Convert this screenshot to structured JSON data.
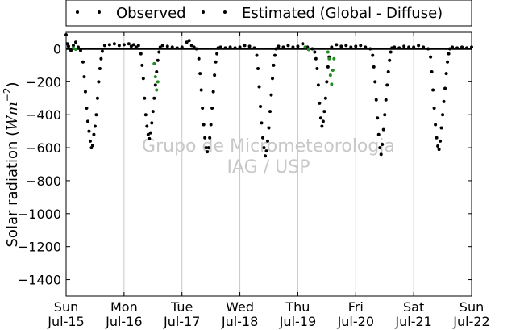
{
  "chart_data": {
    "type": "scatter",
    "title": "",
    "xlabel": "",
    "ylabel": "Solar radiation (Wm⁻²)",
    "ylabel_parts": {
      "prefix": "Solar radiation (",
      "unit_base": "Wm",
      "unit_exponent": "−2",
      "suffix": ")"
    },
    "xlim": [
      "2012-07-15T00:00",
      "2012-07-22T00:00"
    ],
    "ylim": [
      -1500,
      100
    ],
    "yticks": [
      0,
      -200,
      -400,
      -600,
      -800,
      -1000,
      -1200,
      -1400
    ],
    "ytick_labels": [
      "0",
      "−200",
      "−400",
      "−600",
      "−800",
      "−1000",
      "−1200",
      "−1400"
    ],
    "xticks": [
      {
        "date": "2012-07-15",
        "weekday": "Sun",
        "label": "Jul-15"
      },
      {
        "date": "2012-07-16",
        "weekday": "Mon",
        "label": "Jul-16"
      },
      {
        "date": "2012-07-17",
        "weekday": "Tue",
        "label": "Jul-17"
      },
      {
        "date": "2012-07-18",
        "weekday": "Wed",
        "label": "Jul-18"
      },
      {
        "date": "2012-07-19",
        "weekday": "Thu",
        "label": "Jul-19"
      },
      {
        "date": "2012-07-20",
        "weekday": "Fri",
        "label": "Jul-20"
      },
      {
        "date": "2012-07-21",
        "weekday": "Sat",
        "label": "Jul-21"
      },
      {
        "date": "2012-07-22",
        "weekday": "Sun",
        "label": "Jul-22"
      }
    ],
    "grid": {
      "x": true,
      "y": false
    },
    "zero_line": true,
    "legend": {
      "placement": "top",
      "framed": true
    },
    "watermark": [
      "Grupo de Micrometeorologia",
      "IAG / USP"
    ],
    "series": [
      {
        "name": "Observed",
        "color": "#228B22",
        "marker": "dot",
        "points": [
          [
            "2012-07-15T03:00",
            5
          ],
          [
            "2012-07-15T04:00",
            -3
          ],
          [
            "2012-07-16T12:30",
            -90
          ],
          [
            "2012-07-16T13:00",
            -170
          ],
          [
            "2012-07-16T13:30",
            -250
          ],
          [
            "2012-07-16T14:00",
            -200
          ],
          [
            "2012-07-19T03:00",
            10
          ],
          [
            "2012-07-19T04:30",
            -5
          ],
          [
            "2012-07-19T12:30",
            -20
          ],
          [
            "2012-07-19T13:00",
            -60
          ],
          [
            "2012-07-19T13:30",
            -160
          ],
          [
            "2012-07-19T14:00",
            -215
          ],
          [
            "2012-07-19T14:30",
            -130
          ],
          [
            "2012-07-19T15:00",
            -60
          ]
        ]
      },
      {
        "name": "Estimated (Global - Diffuse)",
        "color": "#000000",
        "marker": "dot",
        "points": [
          [
            "2012-07-15T00:00",
            85
          ],
          [
            "2012-07-15T00:30",
            30
          ],
          [
            "2012-07-15T01:00",
            15
          ],
          [
            "2012-07-15T02:00",
            -10
          ],
          [
            "2012-07-15T03:00",
            20
          ],
          [
            "2012-07-15T04:00",
            40
          ],
          [
            "2012-07-15T05:00",
            10
          ],
          [
            "2012-07-15T06:00",
            -10
          ],
          [
            "2012-07-15T07:00",
            -80
          ],
          [
            "2012-07-15T07:30",
            -170
          ],
          [
            "2012-07-15T08:00",
            -260
          ],
          [
            "2012-07-15T08:30",
            -360
          ],
          [
            "2012-07-15T09:00",
            -440
          ],
          [
            "2012-07-15T09:30",
            -500
          ],
          [
            "2012-07-15T10:00",
            -560
          ],
          [
            "2012-07-15T10:30",
            -600
          ],
          [
            "2012-07-15T11:00",
            -585
          ],
          [
            "2012-07-15T11:30",
            -520
          ],
          [
            "2012-07-15T12:00",
            -470
          ],
          [
            "2012-07-15T12:30",
            -400
          ],
          [
            "2012-07-15T13:00",
            -300
          ],
          [
            "2012-07-15T13:30",
            -200
          ],
          [
            "2012-07-15T14:00",
            -120
          ],
          [
            "2012-07-15T14:30",
            -60
          ],
          [
            "2012-07-15T15:00",
            -15
          ],
          [
            "2012-07-15T16:00",
            20
          ],
          [
            "2012-07-15T18:00",
            25
          ],
          [
            "2012-07-15T20:00",
            30
          ],
          [
            "2012-07-15T22:00",
            20
          ],
          [
            "2012-07-16T00:00",
            25
          ],
          [
            "2012-07-16T02:00",
            30
          ],
          [
            "2012-07-16T03:00",
            15
          ],
          [
            "2012-07-16T04:00",
            25
          ],
          [
            "2012-07-16T05:00",
            10
          ],
          [
            "2012-07-16T06:00",
            20
          ],
          [
            "2012-07-16T07:00",
            -30
          ],
          [
            "2012-07-16T07:30",
            -100
          ],
          [
            "2012-07-16T08:00",
            -180
          ],
          [
            "2012-07-16T08:30",
            -300
          ],
          [
            "2012-07-16T09:00",
            -400
          ],
          [
            "2012-07-16T09:30",
            -470
          ],
          [
            "2012-07-16T10:00",
            -520
          ],
          [
            "2012-07-16T10:30",
            -545
          ],
          [
            "2012-07-16T11:00",
            -510
          ],
          [
            "2012-07-16T11:30",
            -450
          ],
          [
            "2012-07-16T12:00",
            -380
          ],
          [
            "2012-07-16T12:30",
            -300
          ],
          [
            "2012-07-16T13:00",
            -220
          ],
          [
            "2012-07-16T13:30",
            -140
          ],
          [
            "2012-07-16T14:00",
            -70
          ],
          [
            "2012-07-16T14:30",
            -20
          ],
          [
            "2012-07-16T15:00",
            10
          ],
          [
            "2012-07-16T16:00",
            20
          ],
          [
            "2012-07-16T18:00",
            15
          ],
          [
            "2012-07-16T20:00",
            10
          ],
          [
            "2012-07-16T22:00",
            5
          ],
          [
            "2012-07-17T00:00",
            10
          ],
          [
            "2012-07-17T02:00",
            40
          ],
          [
            "2012-07-17T03:00",
            50
          ],
          [
            "2012-07-17T04:00",
            20
          ],
          [
            "2012-07-17T05:00",
            10
          ],
          [
            "2012-07-17T06:00",
            0
          ],
          [
            "2012-07-17T07:00",
            -60
          ],
          [
            "2012-07-17T07:30",
            -150
          ],
          [
            "2012-07-17T08:00",
            -250
          ],
          [
            "2012-07-17T08:30",
            -360
          ],
          [
            "2012-07-17T09:00",
            -460
          ],
          [
            "2012-07-17T09:30",
            -540
          ],
          [
            "2012-07-17T10:00",
            -600
          ],
          [
            "2012-07-17T10:30",
            -625
          ],
          [
            "2012-07-17T11:00",
            -600
          ],
          [
            "2012-07-17T11:30",
            -540
          ],
          [
            "2012-07-17T12:00",
            -460
          ],
          [
            "2012-07-17T12:30",
            -360
          ],
          [
            "2012-07-17T13:00",
            -260
          ],
          [
            "2012-07-17T13:30",
            -160
          ],
          [
            "2012-07-17T14:00",
            -80
          ],
          [
            "2012-07-17T14:30",
            -30
          ],
          [
            "2012-07-17T15:00",
            5
          ],
          [
            "2012-07-17T16:00",
            10
          ],
          [
            "2012-07-17T18:00",
            5
          ],
          [
            "2012-07-17T20:00",
            10
          ],
          [
            "2012-07-17T22:00",
            5
          ],
          [
            "2012-07-18T00:00",
            10
          ],
          [
            "2012-07-18T02:00",
            20
          ],
          [
            "2012-07-18T04:00",
            15
          ],
          [
            "2012-07-18T06:00",
            5
          ],
          [
            "2012-07-18T07:00",
            -40
          ],
          [
            "2012-07-18T07:30",
            -120
          ],
          [
            "2012-07-18T08:00",
            -230
          ],
          [
            "2012-07-18T08:30",
            -350
          ],
          [
            "2012-07-18T09:00",
            -450
          ],
          [
            "2012-07-18T09:30",
            -540
          ],
          [
            "2012-07-18T10:00",
            -600
          ],
          [
            "2012-07-18T10:30",
            -650
          ],
          [
            "2012-07-18T11:00",
            -620
          ],
          [
            "2012-07-18T11:30",
            -560
          ],
          [
            "2012-07-18T12:00",
            -480
          ],
          [
            "2012-07-18T12:30",
            -380
          ],
          [
            "2012-07-18T13:00",
            -280
          ],
          [
            "2012-07-18T13:30",
            -180
          ],
          [
            "2012-07-18T14:00",
            -100
          ],
          [
            "2012-07-18T14:30",
            -40
          ],
          [
            "2012-07-18T15:00",
            0
          ],
          [
            "2012-07-18T16:00",
            15
          ],
          [
            "2012-07-18T18:00",
            10
          ],
          [
            "2012-07-18T20:00",
            20
          ],
          [
            "2012-07-18T22:00",
            10
          ],
          [
            "2012-07-19T00:00",
            15
          ],
          [
            "2012-07-19T02:00",
            30
          ],
          [
            "2012-07-19T04:00",
            10
          ],
          [
            "2012-07-19T06:00",
            0
          ],
          [
            "2012-07-19T07:00",
            -20
          ],
          [
            "2012-07-19T07:30",
            -60
          ],
          [
            "2012-07-19T08:00",
            -120
          ],
          [
            "2012-07-19T08:30",
            -220
          ],
          [
            "2012-07-19T09:00",
            -330
          ],
          [
            "2012-07-19T09:30",
            -420
          ],
          [
            "2012-07-19T10:00",
            -470
          ],
          [
            "2012-07-19T10:30",
            -440
          ],
          [
            "2012-07-19T11:00",
            -380
          ],
          [
            "2012-07-19T11:30",
            -300
          ],
          [
            "2012-07-19T12:00",
            -200
          ],
          [
            "2012-07-19T12:30",
            -110
          ],
          [
            "2012-07-19T13:00",
            -50
          ],
          [
            "2012-07-19T14:00",
            10
          ],
          [
            "2012-07-19T16:00",
            25
          ],
          [
            "2012-07-19T18:00",
            15
          ],
          [
            "2012-07-19T20:00",
            20
          ],
          [
            "2012-07-19T22:00",
            10
          ],
          [
            "2012-07-20T00:00",
            15
          ],
          [
            "2012-07-20T02:00",
            20
          ],
          [
            "2012-07-20T04:00",
            10
          ],
          [
            "2012-07-20T06:00",
            0
          ],
          [
            "2012-07-20T07:00",
            -40
          ],
          [
            "2012-07-20T07:30",
            -110
          ],
          [
            "2012-07-20T08:00",
            -200
          ],
          [
            "2012-07-20T08:30",
            -310
          ],
          [
            "2012-07-20T09:00",
            -420
          ],
          [
            "2012-07-20T09:30",
            -520
          ],
          [
            "2012-07-20T10:00",
            -600
          ],
          [
            "2012-07-20T10:30",
            -640
          ],
          [
            "2012-07-20T11:00",
            -580
          ],
          [
            "2012-07-20T11:30",
            -490
          ],
          [
            "2012-07-20T12:00",
            -400
          ],
          [
            "2012-07-20T12:30",
            -310
          ],
          [
            "2012-07-20T13:00",
            -220
          ],
          [
            "2012-07-20T13:30",
            -140
          ],
          [
            "2012-07-20T14:00",
            -70
          ],
          [
            "2012-07-20T14:30",
            -20
          ],
          [
            "2012-07-20T15:00",
            5
          ],
          [
            "2012-07-20T16:00",
            10
          ],
          [
            "2012-07-20T18:00",
            5
          ],
          [
            "2012-07-20T20:00",
            15
          ],
          [
            "2012-07-20T22:00",
            10
          ],
          [
            "2012-07-21T00:00",
            10
          ],
          [
            "2012-07-21T02:00",
            20
          ],
          [
            "2012-07-21T04:00",
            10
          ],
          [
            "2012-07-21T06:00",
            0
          ],
          [
            "2012-07-21T07:00",
            -50
          ],
          [
            "2012-07-21T07:30",
            -140
          ],
          [
            "2012-07-21T08:00",
            -250
          ],
          [
            "2012-07-21T08:30",
            -360
          ],
          [
            "2012-07-21T09:00",
            -460
          ],
          [
            "2012-07-21T09:30",
            -540
          ],
          [
            "2012-07-21T10:00",
            -590
          ],
          [
            "2012-07-21T10:30",
            -610
          ],
          [
            "2012-07-21T11:00",
            -560
          ],
          [
            "2012-07-21T11:30",
            -480
          ],
          [
            "2012-07-21T12:00",
            -400
          ],
          [
            "2012-07-21T12:30",
            -320
          ],
          [
            "2012-07-21T13:00",
            -240
          ],
          [
            "2012-07-21T13:30",
            -150
          ],
          [
            "2012-07-21T14:00",
            -80
          ],
          [
            "2012-07-21T14:30",
            -30
          ],
          [
            "2012-07-21T15:00",
            0
          ],
          [
            "2012-07-21T16:00",
            10
          ],
          [
            "2012-07-21T18:00",
            5
          ],
          [
            "2012-07-21T20:00",
            10
          ],
          [
            "2012-07-21T22:00",
            5
          ],
          [
            "2012-07-22T00:00",
            10
          ]
        ]
      }
    ]
  }
}
